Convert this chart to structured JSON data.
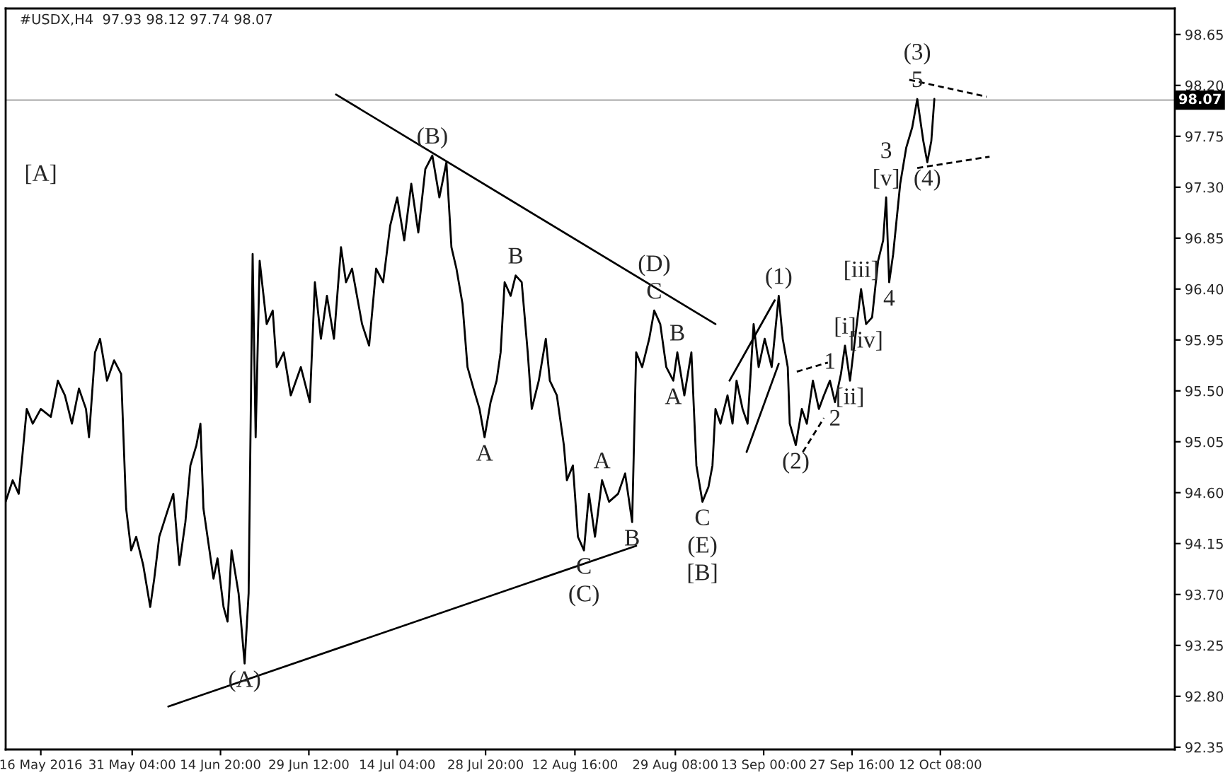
{
  "chart_data": {
    "type": "line",
    "title": "#USDX,H4  97.93 98.12 97.74 98.07",
    "xlim": [
      "2016-05-10T04:00",
      "2016-11-20T06:00"
    ],
    "ylim": [
      92.33,
      98.88
    ],
    "xticks": [
      {
        "value": "2016-05-16",
        "label": "16 May 2016"
      },
      {
        "value": "2016-05-31T04:00",
        "label": "31 May 04:00"
      },
      {
        "value": "2016-06-14T20:00",
        "label": "14 Jun 20:00"
      },
      {
        "value": "2016-06-29T12:00",
        "label": "29 Jun 12:00"
      },
      {
        "value": "2016-07-14T04:00",
        "label": "14 Jul 04:00"
      },
      {
        "value": "2016-07-28T20:00",
        "label": "28 Jul 20:00"
      },
      {
        "value": "2016-08-12T16:00",
        "label": "12 Aug 16:00"
      },
      {
        "value": "2016-08-29T08:00",
        "label": "29 Aug 08:00"
      },
      {
        "value": "2016-09-13T00:00",
        "label": "13 Sep 00:00"
      },
      {
        "value": "2016-09-27T16:00",
        "label": "27 Sep 16:00"
      },
      {
        "value": "2016-10-12T08:00",
        "label": "12 Oct 08:00"
      }
    ],
    "yticks": [
      92.35,
      {
        "value": 92.8,
        "label": "92.80"
      },
      93.25,
      {
        "value": 93.7,
        "label": "93.70"
      },
      94.15,
      {
        "value": 94.6,
        "label": "94.60"
      },
      95.05,
      {
        "value": 95.5,
        "label": "95.50"
      },
      95.95,
      {
        "value": 96.4,
        "label": "96.40"
      },
      96.85,
      {
        "value": 97.3,
        "label": "97.30"
      },
      97.75,
      {
        "value": 98.2,
        "label": "98.20"
      },
      98.65
    ],
    "grid": false,
    "legend": false,
    "marker": "none",
    "ref_lines": [
      {
        "axis": "y",
        "value": 98.07,
        "label": "98.07",
        "color": "#c0c0c0"
      }
    ],
    "series": [
      {
        "color": "#000000",
        "line_style": "solid",
        "x": [
          "2016-05-10T04:00",
          "2016-05-11T08:00",
          "2016-05-12T08:00",
          "2016-05-13T00:00",
          "2016-05-13T16:00",
          "2016-05-14T16:00",
          "2016-05-16T00:00",
          "2016-05-17T16:00",
          "2016-05-18T20:00",
          "2016-05-20T00:00",
          "2016-05-21T04:00",
          "2016-05-22T08:00",
          "2016-05-23T12:00",
          "2016-05-24T00:00",
          "2016-05-25T00:00",
          "2016-05-25T20:00",
          "2016-05-27T00:00",
          "2016-05-28T04:00",
          "2016-05-29T08:00",
          "2016-05-30T04:00",
          "2016-05-31T00:00",
          "2016-05-31T20:00",
          "2016-06-02T00:00",
          "2016-06-03T04:00",
          "2016-06-03T20:00",
          "2016-06-04T16:00",
          "2016-06-06T04:00",
          "2016-06-07T00:00",
          "2016-06-08T00:00",
          "2016-06-09T00:00",
          "2016-06-09T20:00",
          "2016-06-10T20:00",
          "2016-06-11T12:00",
          "2016-06-12T00:00",
          "2016-06-13T00:00",
          "2016-06-13T16:00",
          "2016-06-14T08:00",
          "2016-06-15T08:00",
          "2016-06-16T00:00",
          "2016-06-16T16:00",
          "2016-06-17T20:00",
          "2016-06-18T20:00",
          "2016-06-19T12:00",
          "2016-06-20T04:00",
          "2016-06-20T16:00",
          "2016-06-21T08:00",
          "2016-06-22T12:00",
          "2016-06-23T12:00",
          "2016-06-24T04:00",
          "2016-06-25T08:00",
          "2016-06-26T12:00",
          "2016-06-28T04:00",
          "2016-06-29T16:00",
          "2016-06-30T12:00",
          "2016-07-01T12:00",
          "2016-07-02T12:00",
          "2016-07-03T16:00",
          "2016-07-04T20:00",
          "2016-07-05T16:00",
          "2016-07-06T16:00",
          "2016-07-08T08:00",
          "2016-07-09T12:00",
          "2016-07-10T16:00",
          "2016-07-11T20:00",
          "2016-07-13T00:00",
          "2016-07-14T04:00",
          "2016-07-15T08:00",
          "2016-07-16T12:00",
          "2016-07-17T16:00",
          "2016-07-18T20:00",
          "2016-07-20T00:00",
          "2016-07-21T04:00",
          "2016-07-22T08:00",
          "2016-07-23T04:00",
          "2016-07-24T00:00",
          "2016-07-25T00:00",
          "2016-07-25T20:00",
          "2016-07-26T20:00",
          "2016-07-27T20:00",
          "2016-07-28T16:00",
          "2016-07-29T16:00",
          "2016-07-30T16:00",
          "2016-07-31T08:00",
          "2016-08-01T00:00",
          "2016-08-02T00:00",
          "2016-08-02T20:00",
          "2016-08-03T20:00",
          "2016-08-04T20:00",
          "2016-08-05T12:00",
          "2016-08-06T16:00",
          "2016-08-07T20:00",
          "2016-08-08T12:00",
          "2016-08-09T16:00",
          "2016-08-10T20:00",
          "2016-08-11T08:00",
          "2016-08-12T08:00",
          "2016-08-13T04:00",
          "2016-08-14T04:00",
          "2016-08-15T00:00",
          "2016-08-16T00:00",
          "2016-08-17T04:00",
          "2016-08-18T08:00",
          "2016-08-19T20:00",
          "2016-08-21T00:00",
          "2016-08-22T04:00",
          "2016-08-22T20:00",
          "2016-08-23T20:00",
          "2016-08-25T00:00",
          "2016-08-25T20:00",
          "2016-08-26T20:00",
          "2016-08-27T20:00",
          "2016-08-29T00:00",
          "2016-08-29T16:00",
          "2016-08-30T20:00",
          "2016-09-01T00:00",
          "2016-09-01T20:00",
          "2016-09-02T20:00",
          "2016-09-03T20:00",
          "2016-09-04T12:00",
          "2016-09-05T00:00",
          "2016-09-05T20:00",
          "2016-09-07T00:00",
          "2016-09-07T20:00",
          "2016-09-08T12:00",
          "2016-09-09T12:00",
          "2016-09-10T08:00",
          "2016-09-11T08:00",
          "2016-09-12T04:00",
          "2016-09-13T04:00",
          "2016-09-14T08:00",
          "2016-09-15T12:00",
          "2016-09-16T04:00",
          "2016-09-17T00:00",
          "2016-09-17T08:00",
          "2016-09-18T08:00",
          "2016-09-19T08:00",
          "2016-09-20T04:00",
          "2016-09-21T04:00",
          "2016-09-22T04:00",
          "2016-09-23T00:00",
          "2016-09-24T00:00",
          "2016-09-24T20:00",
          "2016-09-25T20:00",
          "2016-09-26T12:00",
          "2016-09-27T08:00",
          "2016-09-28T04:00",
          "2016-09-29T04:00",
          "2016-09-30T00:00",
          "2016-10-01T00:00",
          "2016-10-02T00:00",
          "2016-10-02T20:00",
          "2016-10-03T08:00",
          "2016-10-03T20:00",
          "2016-10-04T12:00",
          "2016-10-05T16:00",
          "2016-10-06T16:00",
          "2016-10-07T16:00",
          "2016-10-08T12:00",
          "2016-10-09T12:00",
          "2016-10-10T04:00",
          "2016-10-10T20:00",
          "2016-10-11T08:00"
        ],
        "values": [
          94.52,
          94.71,
          94.59,
          94.96,
          95.34,
          95.21,
          95.34,
          95.27,
          95.59,
          95.46,
          95.21,
          95.52,
          95.34,
          95.09,
          95.84,
          95.96,
          95.59,
          95.77,
          95.65,
          94.46,
          94.09,
          94.21,
          93.96,
          93.59,
          93.84,
          94.21,
          94.46,
          94.59,
          93.96,
          94.34,
          94.84,
          95.02,
          95.21,
          94.46,
          94.09,
          93.84,
          94.02,
          93.59,
          93.46,
          94.09,
          93.71,
          93.09,
          93.71,
          96.71,
          95.09,
          96.65,
          96.09,
          96.21,
          95.71,
          95.84,
          95.46,
          95.71,
          95.4,
          96.46,
          95.96,
          96.34,
          95.96,
          96.77,
          96.46,
          96.58,
          96.09,
          95.9,
          96.58,
          96.46,
          96.96,
          97.21,
          96.83,
          97.33,
          96.9,
          97.46,
          97.58,
          97.21,
          97.52,
          96.77,
          96.58,
          96.27,
          95.71,
          95.52,
          95.34,
          95.09,
          95.4,
          95.59,
          95.84,
          96.46,
          96.34,
          96.52,
          96.46,
          95.84,
          95.34,
          95.59,
          95.96,
          95.59,
          95.46,
          95.02,
          94.71,
          94.84,
          94.21,
          94.09,
          94.59,
          94.21,
          94.71,
          94.52,
          94.59,
          94.77,
          94.34,
          95.84,
          95.71,
          95.96,
          96.21,
          96.09,
          95.71,
          95.59,
          95.84,
          95.46,
          95.84,
          94.84,
          94.52,
          94.65,
          94.84,
          95.34,
          95.21,
          95.46,
          95.21,
          95.59,
          95.34,
          95.21,
          96.09,
          95.71,
          95.96,
          95.71,
          96.34,
          95.96,
          95.71,
          95.21,
          95.02,
          95.34,
          95.21,
          95.59,
          95.34,
          95.46,
          95.59,
          95.4,
          95.65,
          95.9,
          95.59,
          95.96,
          96.4,
          96.09,
          96.15,
          96.65,
          96.83,
          97.21,
          96.46,
          96.71,
          97.33,
          97.65,
          97.83,
          98.08,
          97.71,
          97.52,
          97.71,
          98.08
        ]
      },
      {
        "color": "#000000",
        "line_style": "solid",
        "x": [
          "2016-07-04T00:00",
          "2016-09-05T00:00"
        ],
        "values": [
          98.12,
          96.09
        ]
      },
      {
        "color": "#000000",
        "line_style": "solid",
        "x": [
          "2016-06-06T04:00",
          "2016-08-22T20:00"
        ],
        "values": [
          92.71,
          94.13
        ]
      },
      {
        "color": "#000000",
        "line_style": "solid",
        "x": [
          "2016-09-07T08:00",
          "2016-09-14T20:00"
        ],
        "values": [
          95.59,
          96.3
        ]
      },
      {
        "color": "#000000",
        "line_style": "solid",
        "x": [
          "2016-09-10T04:00",
          "2016-09-15T12:00"
        ],
        "values": [
          94.96,
          95.74
        ]
      },
      {
        "color": "#000000",
        "line_style": "dashed",
        "x": [
          "2016-09-18T12:00",
          "2016-09-23T16:00"
        ],
        "values": [
          95.67,
          95.75
        ]
      },
      {
        "color": "#000000",
        "line_style": "dashed",
        "x": [
          "2016-09-19T12:00",
          "2016-09-23T00:00"
        ],
        "values": [
          94.96,
          95.26
        ]
      },
      {
        "color": "#000000",
        "line_style": "dashed",
        "x": [
          "2016-10-07T04:00",
          "2016-10-20T00:00"
        ],
        "values": [
          98.25,
          98.1
        ]
      },
      {
        "color": "#000000",
        "line_style": "dashed",
        "x": [
          "2016-10-08T12:00",
          "2016-10-20T12:00"
        ],
        "values": [
          97.47,
          97.57
        ]
      }
    ],
    "annotations": [
      "[A]",
      {
        "text": "(A)",
        "x": "2016-06-18T20:00",
        "y": 93.09
      },
      {
        "text": "(B)",
        "x": "2016-07-20T00:00",
        "y": 97.58
      },
      {
        "text": "B",
        "x": "2016-08-02T20:00",
        "y": 96.52
      },
      {
        "text": "A",
        "x": "2016-07-28T16:00",
        "y": 95.09
      },
      {
        "text": "A",
        "x": "2016-08-17T04:00",
        "y": 94.71
      },
      {
        "text": "C",
        "x": "2016-08-14T04:00",
        "y": 94.09
      },
      {
        "text": "(C)",
        "x": "2016-08-14T04:00",
        "y": 94.09
      },
      {
        "text": "B",
        "x": "2016-08-22T04:00",
        "y": 94.34
      },
      {
        "text": "C",
        "x": "2016-08-25T20:00",
        "y": 96.21
      },
      {
        "text": "(D)",
        "x": "2016-08-25T20:00",
        "y": 96.21
      },
      {
        "text": "B",
        "x": "2016-08-29T16:00",
        "y": 95.84
      },
      {
        "text": "A",
        "x": "2016-08-29T00:00",
        "y": 95.59
      },
      {
        "text": "C",
        "x": "2016-09-02T20:00",
        "y": 94.52
      },
      {
        "text": "(E)",
        "x": "2016-09-02T20:00",
        "y": 94.52
      },
      {
        "text": "[B]",
        "x": "2016-09-02T20:00",
        "y": 94.52
      },
      {
        "text": "(1)",
        "x": "2016-09-15T12:00",
        "y": 96.34
      },
      {
        "text": "(2)",
        "x": "2016-09-18T08:00",
        "y": 95.02
      },
      {
        "text": "1",
        "x": "2016-09-24T00:00",
        "y": 95.59
      },
      {
        "text": "2",
        "x": "2016-09-24T20:00",
        "y": 95.4
      },
      {
        "text": "[i]",
        "x": "2016-09-26T12:00",
        "y": 95.9
      },
      {
        "text": "[ii]",
        "x": "2016-09-27T08:00",
        "y": 95.59
      },
      {
        "text": "[iii]",
        "x": "2016-09-29T04:00",
        "y": 96.4
      },
      {
        "text": "[iv]",
        "x": "2016-09-30T00:00",
        "y": 96.09
      },
      {
        "text": "[v]",
        "x": "2016-10-03T08:00",
        "y": 97.21
      },
      {
        "text": "3",
        "x": "2016-10-03T08:00",
        "y": 97.21
      },
      {
        "text": "4",
        "x": "2016-10-03T20:00",
        "y": 96.46
      },
      {
        "text": "5",
        "x": "2016-10-08T12:00",
        "y": 98.08
      },
      {
        "text": "(3)",
        "x": "2016-10-08T12:00",
        "y": 98.08
      },
      {
        "text": "(4)",
        "x": "2016-10-10T04:00",
        "y": 97.52
      }
    ]
  }
}
